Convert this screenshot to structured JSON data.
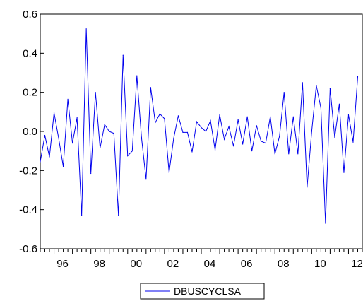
{
  "chart_data": {
    "type": "line",
    "title": "",
    "xlabel": "",
    "ylabel": "",
    "ylim": [
      -0.6,
      0.6
    ],
    "xlim": [
      1995.25,
      2012.75
    ],
    "grid": false,
    "legend_position": "bottom-center",
    "y_ticks": [
      -0.6,
      -0.4,
      -0.2,
      0.0,
      0.2,
      0.4,
      0.6
    ],
    "y_tick_labels": [
      "-0.6",
      "-0.4",
      "-0.2",
      "0.0",
      "0.2",
      "0.4",
      "0.6"
    ],
    "x_tick_labels": [
      {
        "label": "96",
        "x": 1996
      },
      {
        "label": "98",
        "x": 1998
      },
      {
        "label": "00",
        "x": 2000
      },
      {
        "label": "02",
        "x": 2002
      },
      {
        "label": "04",
        "x": 2004
      },
      {
        "label": "06",
        "x": 2006
      },
      {
        "label": "08",
        "x": 2008
      },
      {
        "label": "10",
        "x": 2010
      },
      {
        "label": "12",
        "x": 2012
      }
    ],
    "series": [
      {
        "name": "DBUSCYCLSA",
        "color": "#0000ee",
        "start_year": 1995,
        "start_quarter": 2,
        "values": [
          -0.155,
          -0.02,
          -0.13,
          0.095,
          -0.035,
          -0.18,
          0.165,
          -0.06,
          0.07,
          -0.43,
          0.525,
          -0.215,
          0.2,
          -0.085,
          0.035,
          0.0,
          -0.01,
          -0.43,
          0.39,
          -0.125,
          -0.1,
          0.285,
          -0.03,
          -0.245,
          0.225,
          0.045,
          0.09,
          0.065,
          -0.21,
          -0.035,
          0.08,
          -0.005,
          -0.005,
          -0.105,
          0.05,
          0.02,
          0.0,
          0.055,
          -0.095,
          0.085,
          -0.04,
          0.025,
          -0.075,
          0.06,
          -0.065,
          0.075,
          -0.1,
          0.03,
          -0.05,
          -0.06,
          0.075,
          -0.115,
          -0.025,
          0.2,
          -0.115,
          0.075,
          -0.115,
          0.25,
          -0.285,
          0.0,
          0.235,
          0.12,
          -0.47,
          0.22,
          -0.03,
          0.14,
          -0.21,
          0.085,
          -0.055,
          0.28
        ]
      }
    ]
  }
}
